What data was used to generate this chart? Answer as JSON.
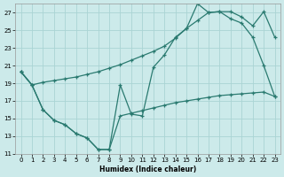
{
  "xlabel": "Humidex (Indice chaleur)",
  "bg_color": "#cceaea",
  "grid_color": "#aad4d4",
  "line_color": "#2a7a70",
  "xlim": [
    -0.5,
    23.5
  ],
  "ylim": [
    11,
    28
  ],
  "yticks": [
    11,
    13,
    15,
    17,
    19,
    21,
    23,
    25,
    27
  ],
  "xticks": [
    0,
    1,
    2,
    3,
    4,
    5,
    6,
    7,
    8,
    9,
    10,
    11,
    12,
    13,
    14,
    15,
    16,
    17,
    18,
    19,
    20,
    21,
    22,
    23
  ],
  "line1_x": [
    0,
    1,
    2,
    3,
    4,
    5,
    6,
    7,
    8,
    9,
    10,
    11,
    12,
    13,
    14,
    15,
    16,
    17,
    18,
    19,
    20,
    21,
    22,
    23
  ],
  "line1_y": [
    20.3,
    18.8,
    19.1,
    19.3,
    19.5,
    19.7,
    20.0,
    20.3,
    20.7,
    21.1,
    21.6,
    22.1,
    22.6,
    23.2,
    24.1,
    25.2,
    26.1,
    27.0,
    27.1,
    27.1,
    26.5,
    25.5,
    27.1,
    24.2
  ],
  "line2_x": [
    0,
    1,
    2,
    3,
    4,
    5,
    6,
    7,
    8,
    9,
    10,
    11,
    12,
    13,
    14,
    15,
    16,
    17,
    18,
    19,
    20,
    21,
    22,
    23
  ],
  "line2_y": [
    20.3,
    18.8,
    16.0,
    14.8,
    14.3,
    13.3,
    12.8,
    11.5,
    11.5,
    18.8,
    15.5,
    15.3,
    20.8,
    22.2,
    24.2,
    25.2,
    28.0,
    27.0,
    27.1,
    26.3,
    25.8,
    24.2,
    21.0,
    17.5
  ],
  "line3_x": [
    0,
    1,
    2,
    3,
    4,
    5,
    6,
    7,
    8,
    9,
    10,
    11,
    12,
    13,
    14,
    15,
    16,
    17,
    18,
    19,
    20,
    21,
    22,
    23
  ],
  "line3_y": [
    20.3,
    18.8,
    16.0,
    14.8,
    14.3,
    13.3,
    12.8,
    11.5,
    11.5,
    15.3,
    15.6,
    15.9,
    16.2,
    16.5,
    16.8,
    17.0,
    17.2,
    17.4,
    17.6,
    17.7,
    17.8,
    17.9,
    18.0,
    17.5
  ]
}
